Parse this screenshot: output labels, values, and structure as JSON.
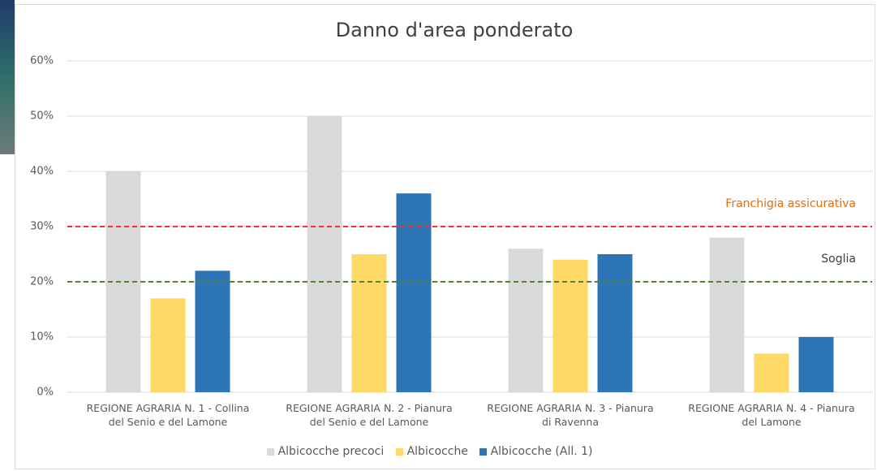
{
  "chart_data": {
    "type": "bar",
    "title": "Danno d'area ponderato",
    "categories": [
      "REGIONE AGRARIA N. 1 - Collina\ndel Senio e del Lamone",
      "REGIONE AGRARIA N. 2 - Pianura\ndel Senio e del Lamone",
      "REGIONE AGRARIA N. 3 - Pianura\ndi Ravenna",
      "REGIONE AGRARIA N. 4 - Pianura\ndel Lamone"
    ],
    "series": [
      {
        "name": "Albicocche precoci",
        "color": "#d9d9d9",
        "values": [
          40,
          50,
          26,
          28
        ]
      },
      {
        "name": "Albicocche",
        "color": "#ffd966",
        "values": [
          17,
          25,
          24,
          7
        ]
      },
      {
        "name": "Albicocche (All. 1)",
        "color": "#2e75b6",
        "values": [
          22,
          36,
          25,
          10
        ]
      }
    ],
    "ylim": [
      0,
      60
    ],
    "yticks": [
      {
        "value": 0,
        "label": "0%"
      },
      {
        "value": 10,
        "label": "10%"
      },
      {
        "value": 20,
        "label": "20%"
      },
      {
        "value": 30,
        "label": "30%"
      },
      {
        "value": 40,
        "label": "40%"
      },
      {
        "value": 50,
        "label": "50%"
      },
      {
        "value": 60,
        "label": "60%"
      }
    ],
    "grid": true,
    "reference_lines": [
      {
        "label": "Franchigia assicurativa",
        "value": 30,
        "color": "#ff2a2a",
        "label_color": "#e46c0a"
      },
      {
        "label": "Soglia",
        "value": 20,
        "color": "#548235",
        "label_color": "#404040"
      }
    ],
    "legend": "bottom"
  }
}
